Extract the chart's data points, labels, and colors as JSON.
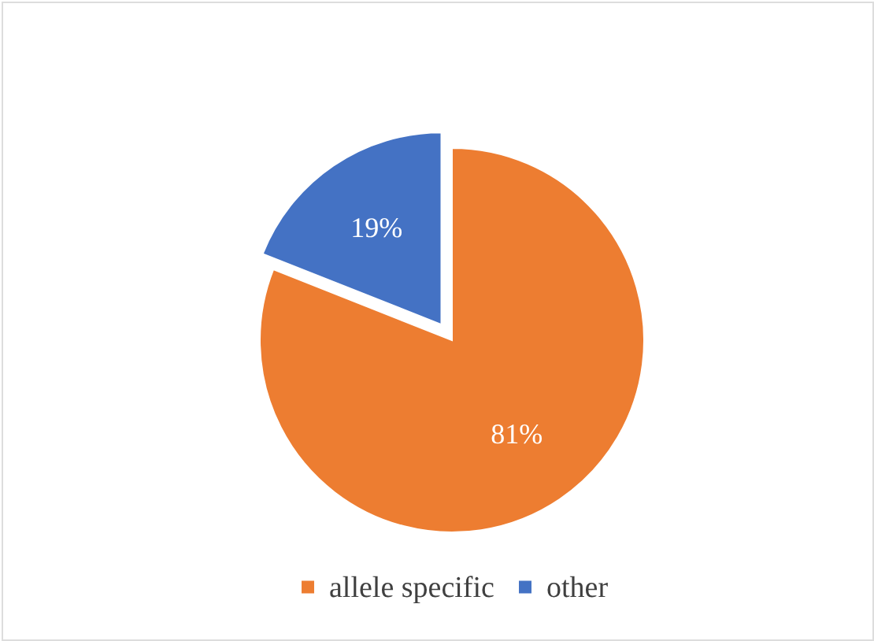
{
  "chart_data": {
    "type": "pie",
    "categories": [
      "allele specific",
      "other"
    ],
    "values": [
      81,
      19
    ],
    "colors": [
      "#ed7d31",
      "#4472c4"
    ],
    "value_labels": [
      "81%",
      "19%"
    ],
    "legend": "bottom"
  }
}
